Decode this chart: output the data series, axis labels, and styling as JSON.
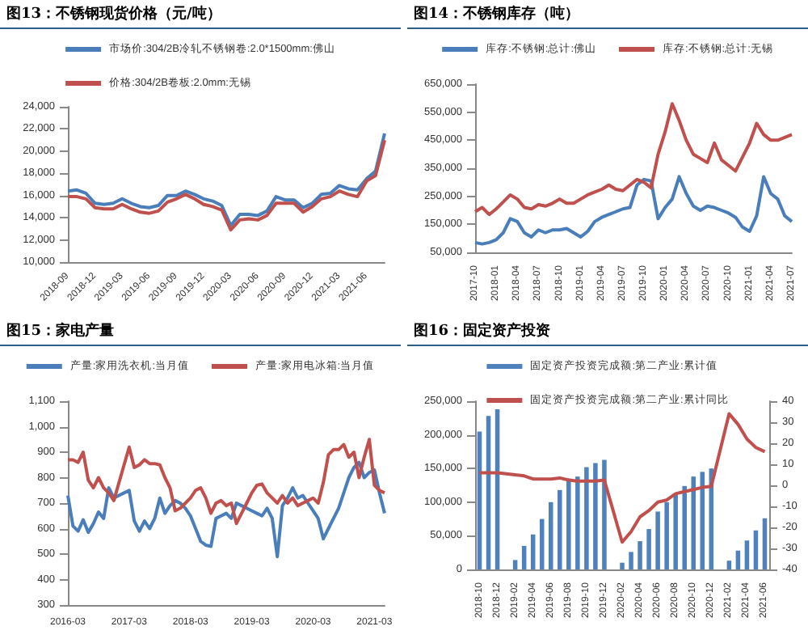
{
  "chart_data": [
    {
      "type": "line",
      "title": "图13：不锈钢现货价格（元/吨）",
      "legend": "top",
      "marker": "none",
      "grid": false,
      "categories": [
        "2018-09",
        null,
        null,
        "2018-12",
        null,
        null,
        "2019-03",
        null,
        null,
        "2019-06",
        null,
        null,
        "2019-09",
        null,
        null,
        "2019-12",
        null,
        null,
        "2020-03",
        null,
        null,
        "2020-06",
        null,
        null,
        "2020-09",
        null,
        null,
        "2020-12",
        null,
        null,
        "2021-03",
        null,
        null,
        "2021-06",
        null,
        null
      ],
      "ylim": [
        10000,
        24000
      ],
      "yticks": [
        {
          "value": 10000,
          "label": "10,000"
        },
        {
          "value": 12000,
          "label": "12,000"
        },
        {
          "value": 14000,
          "label": "14,000"
        },
        {
          "value": 16000,
          "label": "16,000"
        },
        {
          "value": 18000,
          "label": "18,000"
        },
        {
          "value": 20000,
          "label": "20,000"
        },
        {
          "value": 22000,
          "label": "22,000"
        },
        {
          "value": 24000,
          "label": "24,000"
        }
      ],
      "series": [
        {
          "name": "市场价:304/2B冷轧不锈钢卷:2.0*1500mm:佛山",
          "color": "#4a7ebb",
          "values": [
            16400,
            16500,
            16200,
            15300,
            15200,
            15300,
            15700,
            15300,
            15000,
            14900,
            15100,
            16000,
            16000,
            16400,
            16100,
            15700,
            15500,
            15100,
            13300,
            14300,
            14300,
            14200,
            14600,
            15900,
            15600,
            15600,
            14900,
            15300,
            16100,
            16200,
            16900,
            16600,
            16500,
            17500,
            18200,
            21600
          ]
        },
        {
          "name": "价格:304/2B卷板:2.0mm:无锡",
          "color": "#c0504d",
          "values": [
            15900,
            15900,
            15700,
            14900,
            14800,
            14800,
            15200,
            14800,
            14500,
            14400,
            14600,
            15400,
            15700,
            16100,
            15700,
            15200,
            15000,
            14700,
            12900,
            13800,
            13900,
            13800,
            14200,
            15300,
            15300,
            15300,
            14500,
            15000,
            15700,
            15900,
            16400,
            16100,
            15900,
            17300,
            17800,
            21000
          ]
        }
      ]
    },
    {
      "type": "line",
      "title": "图14：不锈钢库存（吨）",
      "legend": "top",
      "marker": "none",
      "grid": false,
      "categories": [
        "2017-10",
        null,
        null,
        "2018-01",
        null,
        null,
        "2018-04",
        null,
        null,
        "2018-07",
        null,
        null,
        "2018-10",
        null,
        null,
        "2019-01",
        null,
        null,
        "2019-04",
        null,
        null,
        "2019-07",
        null,
        null,
        "2019-10",
        null,
        null,
        "2020-01",
        null,
        null,
        "2020-04",
        null,
        null,
        "2020-07",
        null,
        null,
        "2020-10",
        null,
        null,
        "2021-01",
        null,
        null,
        "2021-04",
        null,
        null,
        "2021-07"
      ],
      "ylim": [
        50000,
        650000
      ],
      "yticks": [
        {
          "value": 50000,
          "label": "50,000"
        },
        {
          "value": 150000,
          "label": "150,000"
        },
        {
          "value": 250000,
          "label": "250,000"
        },
        {
          "value": 350000,
          "label": "350,000"
        },
        {
          "value": 450000,
          "label": "450,000"
        },
        {
          "value": 550000,
          "label": "550,000"
        },
        {
          "value": 650000,
          "label": "650,000"
        }
      ],
      "series": [
        {
          "name": "库存:不锈钢:总计:佛山",
          "color": "#4a7ebb",
          "values": [
            85000,
            80000,
            85000,
            95000,
            120000,
            170000,
            160000,
            120000,
            105000,
            130000,
            120000,
            130000,
            130000,
            135000,
            120000,
            105000,
            125000,
            160000,
            175000,
            185000,
            195000,
            205000,
            210000,
            290000,
            310000,
            305000,
            170000,
            210000,
            240000,
            320000,
            260000,
            215000,
            200000,
            215000,
            210000,
            200000,
            190000,
            175000,
            140000,
            125000,
            180000,
            320000,
            260000,
            240000,
            180000,
            160000
          ]
        },
        {
          "name": "库存:不锈钢:总计:无锡",
          "color": "#c0504d",
          "values": [
            195000,
            210000,
            185000,
            205000,
            230000,
            255000,
            240000,
            210000,
            205000,
            220000,
            215000,
            225000,
            240000,
            225000,
            225000,
            240000,
            255000,
            265000,
            275000,
            290000,
            275000,
            270000,
            290000,
            310000,
            300000,
            280000,
            400000,
            480000,
            580000,
            520000,
            450000,
            400000,
            385000,
            370000,
            440000,
            380000,
            360000,
            340000,
            390000,
            440000,
            510000,
            470000,
            450000,
            450000,
            460000,
            470000
          ]
        }
      ]
    },
    {
      "type": "line",
      "title": "图15：家电产量",
      "legend": "top",
      "marker": "none",
      "grid": false,
      "categories": [
        "2016-03",
        null,
        null,
        null,
        null,
        null,
        null,
        null,
        null,
        null,
        null,
        null,
        "2017-03",
        null,
        null,
        null,
        null,
        null,
        null,
        null,
        null,
        null,
        null,
        null,
        "2018-03",
        null,
        null,
        null,
        null,
        null,
        null,
        null,
        null,
        null,
        null,
        null,
        "2019-03",
        null,
        null,
        null,
        null,
        null,
        null,
        null,
        null,
        null,
        null,
        null,
        "2020-03",
        null,
        null,
        null,
        null,
        null,
        null,
        null,
        null,
        null,
        null,
        null,
        "2021-03",
        null,
        null
      ],
      "ylim": [
        300,
        1100
      ],
      "yticks": [
        300,
        400,
        500,
        600,
        700,
        800,
        900,
        {
          "value": 1000,
          "label": "1,000"
        },
        {
          "value": 1100,
          "label": "1,100"
        }
      ],
      "series": [
        {
          "name": "产量:家用洗衣机:当月值",
          "color": "#4a7ebb",
          "values": [
            730,
            610,
            590,
            635,
            585,
            620,
            665,
            640,
            760,
            720,
            730,
            740,
            750,
            630,
            590,
            630,
            600,
            640,
            720,
            660,
            690,
            710,
            700,
            680,
            650,
            600,
            550,
            535,
            530,
            640,
            650,
            660,
            640,
            700,
            690,
            680,
            670,
            660,
            650,
            680,
            640,
            490,
            690,
            720,
            760,
            720,
            730,
            700,
            670,
            640,
            560,
            600,
            640,
            680,
            740,
            800,
            840,
            860,
            800,
            820,
            830,
            740,
            660
          ]
        },
        {
          "name": "产量:家用电冰箱:当月值",
          "color": "#c0504d",
          "values": [
            870,
            870,
            860,
            900,
            790,
            760,
            800,
            760,
            740,
            710,
            780,
            850,
            920,
            840,
            850,
            870,
            855,
            855,
            850,
            800,
            760,
            670,
            680,
            700,
            720,
            750,
            760,
            720,
            660,
            700,
            710,
            690,
            700,
            620,
            660,
            700,
            740,
            770,
            775,
            740,
            720,
            700,
            730,
            700,
            720,
            690,
            700,
            710,
            720,
            700,
            780,
            890,
            910,
            910,
            930,
            880,
            900,
            800,
            880,
            950,
            770,
            750,
            740
          ]
        }
      ]
    },
    {
      "type": "bar",
      "title": "图16：固定资产投资",
      "legend": "top",
      "grid": false,
      "categories": [
        "2018-10",
        null,
        "2018-12",
        null,
        "2019-02",
        null,
        "2019-04",
        null,
        "2019-06",
        null,
        "2019-08",
        null,
        "2019-10",
        null,
        "2019-12",
        null,
        "2020-02",
        null,
        "2020-04",
        null,
        "2020-06",
        null,
        "2020-08",
        null,
        "2020-10",
        null,
        "2020-12",
        null,
        "2021-02",
        null,
        "2021-04",
        null,
        "2021-06"
      ],
      "ylim": [
        0,
        250000
      ],
      "yticks": [
        0,
        {
          "value": 50000,
          "label": "50,000"
        },
        {
          "value": 100000,
          "label": "100,000"
        },
        {
          "value": 150000,
          "label": "150,000"
        },
        {
          "value": 200000,
          "label": "200,000"
        },
        {
          "value": 250000,
          "label": "250,000"
        }
      ],
      "y2lim": [
        -40,
        40
      ],
      "y2ticks": [
        -40,
        -30,
        -20,
        -10,
        0,
        10,
        20,
        30,
        40
      ],
      "series": [
        {
          "name": "固定资产投资完成额:第二产业:累计值",
          "color": "#4f81bd",
          "values": [
            205000,
            228000,
            238000,
            null,
            14000,
            35000,
            52000,
            75000,
            100000,
            118000,
            135000,
            138000,
            152000,
            158000,
            163000,
            null,
            10000,
            26000,
            42000,
            60000,
            86000,
            100000,
            112000,
            124000,
            138000,
            145000,
            150000,
            null,
            13000,
            28000,
            43000,
            58000,
            76000
          ]
        },
        {
          "name": "固定资产投资完成额:第二产业:累计同比",
          "type": "line",
          "axis": "y2",
          "marker": "none",
          "color": "#c0504d",
          "values": [
            6,
            6,
            6,
            null,
            5,
            4.5,
            3,
            3,
            3,
            3.5,
            2.5,
            2,
            2,
            2,
            2.5,
            null,
            -27,
            -22,
            -15,
            -12,
            -8,
            -7,
            -4,
            -3,
            -2,
            -1,
            -0.5,
            null,
            34,
            29,
            22,
            18,
            16
          ]
        }
      ]
    }
  ]
}
